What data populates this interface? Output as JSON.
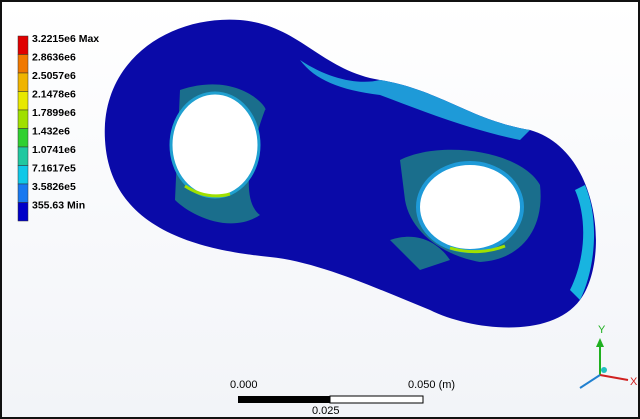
{
  "legend": {
    "levels": [
      {
        "label": "3.2215e6 Max",
        "color": "#e00000"
      },
      {
        "label": "2.8636e6",
        "color": "#f07800"
      },
      {
        "label": "2.5057e6",
        "color": "#f0b400"
      },
      {
        "label": "2.1478e6",
        "color": "#e8e800"
      },
      {
        "label": "1.7899e6",
        "color": "#a0e000"
      },
      {
        "label": "1.432e6",
        "color": "#30d030"
      },
      {
        "label": "1.0741e6",
        "color": "#20c8a0"
      },
      {
        "label": "7.1617e5",
        "color": "#10c8e8"
      },
      {
        "label": "3.5826e5",
        "color": "#1878f0"
      },
      {
        "label": "355.63 Min",
        "color": "#0000c8"
      }
    ]
  },
  "scale_bar": {
    "start": "0.000",
    "end": "0.050 (m)",
    "middle": "0.025"
  },
  "triad": {
    "y": "Y",
    "x": "X"
  }
}
